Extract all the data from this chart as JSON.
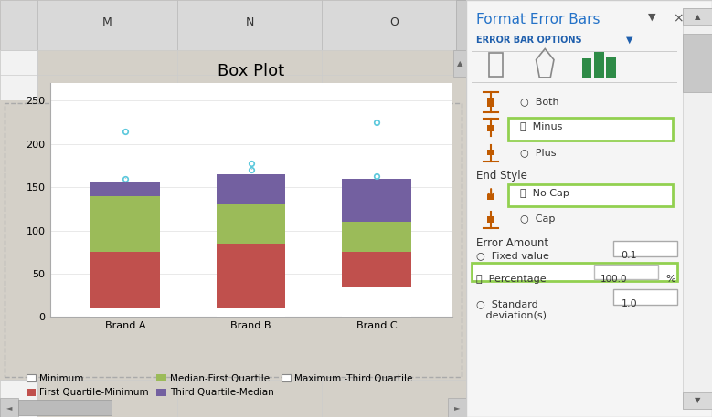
{
  "title": "Box Plot",
  "brands": [
    "Brand A",
    "Brand B",
    "Brand C"
  ],
  "stats": {
    "Brand A": {
      "min": 10,
      "q1": 75,
      "median": 140,
      "q3": 155,
      "max": 160,
      "outliers": [
        215,
        160
      ]
    },
    "Brand B": {
      "min": 10,
      "q1": 85,
      "median": 130,
      "q3": 165,
      "max": 170,
      "outliers": [
        178,
        170
      ]
    },
    "Brand C": {
      "min": 35,
      "q1": 75,
      "median": 110,
      "q3": 160,
      "max": 165,
      "outliers": [
        225,
        163
      ]
    }
  },
  "colors": {
    "q1_min": "#C0504D",
    "med_q1": "#9BBB59",
    "q3_med": "#7360A0",
    "whisker": "#000000",
    "outlier": "#5BC8DC"
  },
  "ylim": [
    0,
    270
  ],
  "yticks": [
    0,
    50,
    100,
    150,
    200,
    250
  ],
  "bar_width": 0.55,
  "legend_labels": [
    "Minimum",
    "First Quartile-Minimum",
    "Median-First Quartile",
    "Third Quartile-Median",
    "Maximum -Third Quartile"
  ],
  "excel_bg": "#D4D0C8",
  "chart_bg": "#FFFFFF",
  "panel_bg": "#F0F0F0",
  "title_fontsize": 13,
  "tick_fontsize": 8,
  "legend_fontsize": 7.5,
  "panel_title_color": "#2472C8",
  "panel_section_color": "#1F5FAD",
  "orange_color": "#C05A00",
  "green_border": "#92D050",
  "col_header_bg": "#D9D9D9",
  "col_header_text": "#333333"
}
